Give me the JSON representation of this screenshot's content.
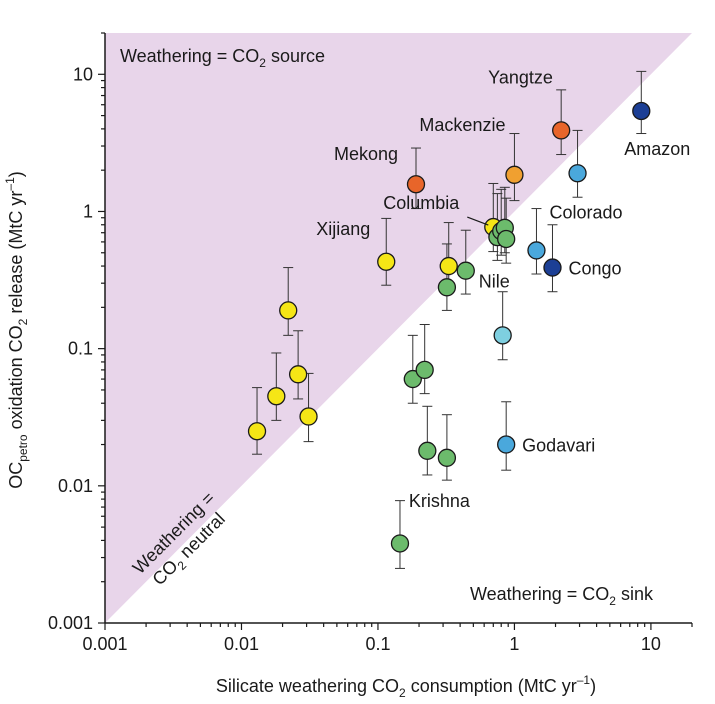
{
  "chart_data": {
    "type": "scatter",
    "scale": "log-log",
    "xlim": [
      0.001,
      20
    ],
    "ylim": [
      0.001,
      20
    ],
    "x_ticks": [
      "0.001",
      "0.01",
      "0.1",
      "1",
      "10"
    ],
    "y_ticks": [
      "0.001",
      "0.01",
      "0.1",
      "1",
      "10"
    ],
    "xlabel": {
      "pre": "Silicate weathering CO",
      "sub": "2",
      "mid": " consumption (MtC yr",
      "sup": "–1",
      "post": ")"
    },
    "ylabel": {
      "pre": "OC",
      "sub": "petro",
      "mid": " oxidation CO",
      "sub2": "2",
      "mid2": " release (MtC yr",
      "sup": "–1",
      "post": ")"
    },
    "regions": {
      "source": {
        "pre": "Weathering = CO",
        "sub": "2",
        "post": " source"
      },
      "sink": {
        "pre": "Weathering = CO",
        "sub": "2",
        "post": " sink"
      },
      "neutral_line1": "Weathering =",
      "neutral_line2": {
        "pre": "CO",
        "sub": "2",
        "post": " neutral"
      }
    },
    "colors": {
      "source_fill": "#e8d5ea",
      "yellow": "#f5e616",
      "green": "#6cbb6c",
      "orange_red": "#e8652a",
      "orange": "#f0a030",
      "light_blue": "#4aa8dc",
      "pale_blue": "#7ecfe0",
      "dark_blue": "#1c3f95",
      "error_bar": "#333333"
    },
    "points": [
      {
        "x": 0.013,
        "y": 0.025,
        "lo": 0.017,
        "hi": 0.052,
        "color": "yellow"
      },
      {
        "x": 0.018,
        "y": 0.045,
        "lo": 0.03,
        "hi": 0.093,
        "color": "yellow"
      },
      {
        "x": 0.022,
        "y": 0.19,
        "lo": 0.125,
        "hi": 0.39,
        "color": "yellow"
      },
      {
        "x": 0.026,
        "y": 0.065,
        "lo": 0.043,
        "hi": 0.135,
        "color": "yellow"
      },
      {
        "x": 0.031,
        "y": 0.032,
        "lo": 0.021,
        "hi": 0.066,
        "color": "yellow"
      },
      {
        "x": 0.115,
        "y": 0.43,
        "lo": 0.29,
        "hi": 0.89,
        "color": "yellow",
        "label": "Xijiang"
      },
      {
        "x": 0.33,
        "y": 0.4,
        "lo": 0.27,
        "hi": 0.83,
        "color": "yellow"
      },
      {
        "x": 0.7,
        "y": 0.77,
        "lo": 0.51,
        "hi": 1.6,
        "color": "yellow",
        "label": "Columbia"
      },
      {
        "x": 0.19,
        "y": 1.58,
        "lo": 1.05,
        "hi": 2.9,
        "color": "orange_red",
        "label": "Mekong"
      },
      {
        "x": 2.2,
        "y": 3.9,
        "lo": 2.6,
        "hi": 7.7,
        "color": "orange_red",
        "label": "Yangtze"
      },
      {
        "x": 1.0,
        "y": 1.85,
        "lo": 1.2,
        "hi": 3.7,
        "color": "orange",
        "label": "Mackenzie"
      },
      {
        "x": 0.32,
        "y": 0.28,
        "lo": 0.19,
        "hi": 0.58,
        "color": "green"
      },
      {
        "x": 0.44,
        "y": 0.37,
        "lo": 0.25,
        "hi": 0.73,
        "color": "green",
        "label": "Nile"
      },
      {
        "x": 0.75,
        "y": 0.65,
        "lo": 0.44,
        "hi": 1.35,
        "color": "green"
      },
      {
        "x": 0.8,
        "y": 0.72,
        "lo": 0.48,
        "hi": 1.45,
        "color": "green"
      },
      {
        "x": 0.85,
        "y": 0.76,
        "lo": 0.5,
        "hi": 1.5,
        "color": "green"
      },
      {
        "x": 0.87,
        "y": 0.63,
        "lo": 0.42,
        "hi": 1.25,
        "color": "green"
      },
      {
        "x": 0.18,
        "y": 0.06,
        "lo": 0.04,
        "hi": 0.125,
        "color": "green"
      },
      {
        "x": 0.22,
        "y": 0.07,
        "lo": 0.047,
        "hi": 0.15,
        "color": "green"
      },
      {
        "x": 0.23,
        "y": 0.018,
        "lo": 0.012,
        "hi": 0.038,
        "color": "green"
      },
      {
        "x": 0.32,
        "y": 0.016,
        "lo": 0.011,
        "hi": 0.033,
        "color": "green",
        "label": "Krishna"
      },
      {
        "x": 0.145,
        "y": 0.0038,
        "lo": 0.0025,
        "hi": 0.0078,
        "color": "green"
      },
      {
        "x": 0.82,
        "y": 0.125,
        "lo": 0.083,
        "hi": 0.26,
        "color": "pale_blue"
      },
      {
        "x": 1.45,
        "y": 0.52,
        "lo": 0.35,
        "hi": 1.05,
        "color": "light_blue",
        "label": "Colorado"
      },
      {
        "x": 2.9,
        "y": 1.9,
        "lo": 1.27,
        "hi": 3.9,
        "color": "light_blue"
      },
      {
        "x": 0.87,
        "y": 0.02,
        "lo": 0.013,
        "hi": 0.041,
        "color": "light_blue",
        "label": "Godavari"
      },
      {
        "x": 1.9,
        "y": 0.39,
        "lo": 0.26,
        "hi": 0.8,
        "color": "dark_blue",
        "label": "Congo"
      },
      {
        "x": 8.5,
        "y": 5.4,
        "lo": 3.7,
        "hi": 10.5,
        "color": "dark_blue",
        "label": "Amazon"
      }
    ]
  }
}
